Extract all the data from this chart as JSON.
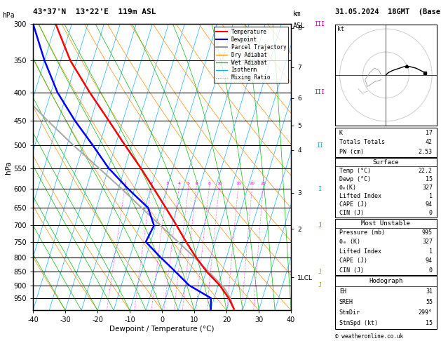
{
  "title_left": "43°37'N  13°22'E  119m ASL",
  "title_right": "31.05.2024  18GMT  (Base: 18)",
  "xlabel": "Dewpoint / Temperature (°C)",
  "pressure_ticks": [
    300,
    350,
    400,
    450,
    500,
    550,
    600,
    650,
    700,
    750,
    800,
    850,
    900,
    950
  ],
  "km_ticks": [
    8,
    7,
    6,
    5,
    4,
    3,
    2,
    "1LCL"
  ],
  "km_pressures": [
    305,
    360,
    410,
    460,
    510,
    610,
    710,
    870
  ],
  "temp_profile": {
    "pressure": [
      995,
      950,
      900,
      850,
      800,
      750,
      700,
      650,
      600,
      550,
      500,
      450,
      400,
      350,
      300
    ],
    "temp": [
      22.2,
      19.5,
      15.5,
      10.2,
      5.5,
      1.0,
      -3.5,
      -8.5,
      -14.0,
      -20.0,
      -27.0,
      -34.5,
      -43.0,
      -52.0,
      -60.0
    ]
  },
  "dewp_profile": {
    "pressure": [
      995,
      950,
      900,
      850,
      800,
      750,
      700,
      650,
      600,
      550,
      500,
      450,
      400,
      350,
      300
    ],
    "temp": [
      15.0,
      14.0,
      6.0,
      0.5,
      -5.5,
      -11.5,
      -10.5,
      -14.0,
      -22.0,
      -30.0,
      -37.0,
      -45.0,
      -53.0,
      -60.0,
      -67.0
    ]
  },
  "parcel_profile": {
    "pressure": [
      995,
      950,
      915,
      900,
      850,
      800,
      750,
      700,
      650,
      600,
      550,
      500,
      450,
      400,
      350,
      300
    ],
    "temp": [
      22.2,
      20.0,
      17.5,
      16.2,
      10.8,
      5.0,
      -1.5,
      -8.5,
      -16.0,
      -24.0,
      -33.0,
      -43.0,
      -53.5,
      -64.5,
      -76.0,
      -88.0
    ]
  },
  "lcl_pressure": 915,
  "colors": {
    "temperature": "#ff0000",
    "dewpoint": "#0000ff",
    "parcel": "#aaaaaa",
    "dry_adiabat": "#ff8c00",
    "wet_adiabat": "#00bb00",
    "isotherm": "#00aaff",
    "mix_ratio": "#ff00ff",
    "background": "#ffffff",
    "grid": "#000000"
  },
  "stats": {
    "K": 17,
    "TotTot": 42,
    "PW_cm": 2.53,
    "Surf_Temp": 22.2,
    "Surf_Dewp": 15,
    "Surf_theta_e": 327,
    "Surf_LI": 1,
    "Surf_CAPE": 94,
    "Surf_CIN": 0,
    "MU_Pressure": 995,
    "MU_theta_e": 327,
    "MU_LI": 1,
    "MU_CAPE": 94,
    "MU_CIN": 0,
    "EH": 31,
    "SREH": 55,
    "StmDir": 299,
    "StmSpd": 15
  }
}
